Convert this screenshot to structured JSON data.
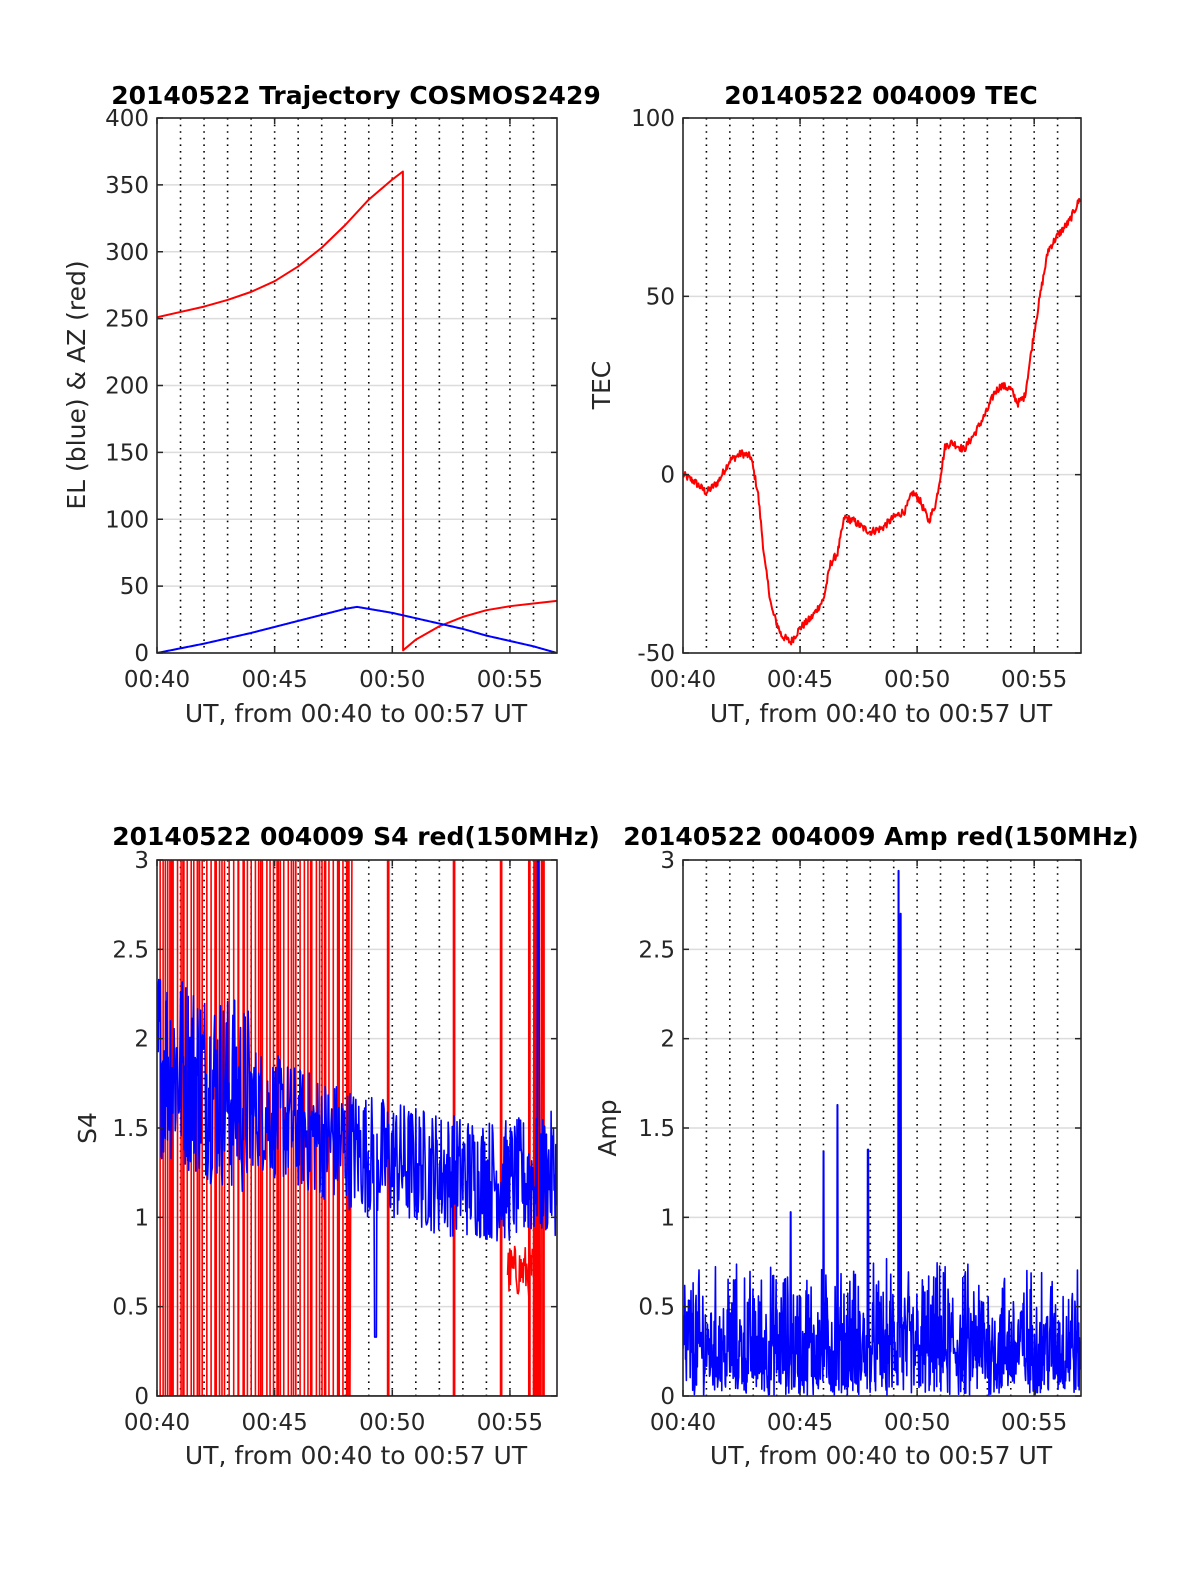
{
  "colors": {
    "red": "#ff0000",
    "blue": "#0000ff",
    "axis": "#262626",
    "grid": "#dcdcdc",
    "dotted": "#000000"
  },
  "chart_data": [
    {
      "type": "line",
      "title": "20140522 Trajectory COSMOS2429",
      "xlabel": "UT, from 00:40 to 00:57 UT",
      "ylabel": "EL (blue) & AZ (red)",
      "xlim": [
        0,
        17
      ],
      "ylim": [
        0,
        400
      ],
      "xticks": [
        0,
        5,
        10,
        15
      ],
      "xticklabels": [
        "00:40",
        "00:45",
        "00:50",
        "00:55"
      ],
      "yticks": [
        0,
        50,
        100,
        150,
        200,
        250,
        300,
        350,
        400
      ],
      "yticklabels": [
        "0",
        "50",
        "100",
        "150",
        "200",
        "250",
        "300",
        "350",
        "400"
      ],
      "grid": true,
      "series": [
        {
          "color": "#ff0000",
          "x": [
            0,
            1,
            2,
            3,
            4,
            5,
            6,
            7,
            8,
            9,
            10,
            10.45,
            10.46,
            11,
            12,
            13,
            14,
            15,
            16,
            17
          ],
          "y": [
            251,
            255,
            259,
            264,
            270,
            278,
            289,
            303,
            320,
            339,
            354,
            360,
            2,
            10,
            20,
            27,
            32,
            35,
            37,
            39
          ]
        },
        {
          "color": "#0000ff",
          "x": [
            0,
            1,
            2,
            3,
            4,
            5,
            6,
            7,
            8,
            8.5,
            9,
            10,
            11,
            12,
            13,
            14,
            15,
            16,
            17
          ],
          "y": [
            0,
            3.5,
            7,
            11,
            15,
            19.5,
            24,
            28.5,
            33,
            34.5,
            33,
            30,
            26,
            22,
            18,
            13,
            9,
            5,
            0
          ]
        }
      ]
    },
    {
      "type": "line",
      "title": "20140522 004009 TEC",
      "xlabel": "UT, from 00:40 to 00:57 UT",
      "ylabel": "TEC",
      "xlim": [
        0,
        17
      ],
      "ylim": [
        -50,
        100
      ],
      "xticks": [
        0,
        5,
        10,
        15
      ],
      "xticklabels": [
        "00:40",
        "00:45",
        "00:50",
        "00:55"
      ],
      "yticks": [
        -50,
        0,
        50,
        100
      ],
      "yticklabels": [
        "-50",
        "0",
        "50",
        "100"
      ],
      "grid": true,
      "series": [
        {
          "color": "#ff0000",
          "x": [
            0,
            0.5,
            1,
            1.5,
            2,
            2.5,
            2.9,
            3.2,
            3.5,
            3.8,
            4.2,
            4.6,
            5,
            5.5,
            6,
            6.3,
            6.6,
            6.9,
            7.3,
            7.7,
            8,
            8.5,
            9,
            9.5,
            9.8,
            10.1,
            10.5,
            10.8,
            11.2,
            11.5,
            12,
            12.5,
            13,
            13.3,
            13.6,
            14,
            14.3,
            14.6,
            15,
            15.3,
            15.6,
            16,
            16.5,
            17
          ],
          "y": [
            0,
            -2,
            -5,
            -2,
            4,
            6,
            5,
            -5,
            -25,
            -38,
            -45,
            -47,
            -43,
            -40,
            -35,
            -25,
            -22,
            -12,
            -13,
            -15,
            -16,
            -15,
            -12,
            -10,
            -5,
            -7,
            -13,
            -8,
            8,
            9,
            7,
            12,
            18,
            23,
            25,
            24,
            20,
            22,
            40,
            52,
            63,
            67,
            71,
            78
          ]
        }
      ]
    },
    {
      "type": "line",
      "title": "20140522 004009 S4 red(150MHz)",
      "xlabel": "UT, from 00:40 to 00:57 UT",
      "ylabel": "S4",
      "xlim": [
        0,
        17
      ],
      "ylim": [
        0,
        3
      ],
      "xticks": [
        0,
        5,
        10,
        15
      ],
      "xticklabels": [
        "00:40",
        "00:45",
        "00:50",
        "00:55"
      ],
      "yticks": [
        0,
        0.5,
        1,
        1.5,
        2,
        2.5,
        3
      ],
      "yticklabels": [
        "0",
        "0.5",
        "1",
        "1.5",
        "2",
        "2.5",
        "3"
      ],
      "grid": true,
      "series": [
        {
          "color": "#ff0000",
          "noisy": true,
          "range": [
            0,
            3
          ],
          "x_end": 8.2,
          "spikes_x": [
            9.8,
            12.6,
            14.6,
            15.8,
            16.1,
            16.4
          ],
          "low_band": [
            14.9,
            16.0,
            0.55,
            0.85
          ]
        },
        {
          "color": "#0000ff",
          "noisy": true,
          "trend_x": [
            0,
            3,
            6,
            9,
            12,
            15,
            17
          ],
          "trend_y": [
            1.9,
            1.7,
            1.5,
            1.35,
            1.25,
            1.2,
            1.25
          ],
          "spread": 0.35,
          "dip_x": 9.3,
          "dip_y": 0.33,
          "spike_x": 16.2,
          "spike_y": 3.0
        }
      ]
    },
    {
      "type": "line",
      "title": "20140522 004009 Amp red(150MHz)",
      "xlabel": "UT, from 00:40 to 00:57 UT",
      "ylabel": "Amp",
      "xlim": [
        0,
        17
      ],
      "ylim": [
        0,
        3
      ],
      "xticks": [
        0,
        5,
        10,
        15
      ],
      "xticklabels": [
        "00:40",
        "00:45",
        "00:50",
        "00:55"
      ],
      "yticks": [
        0,
        0.5,
        1,
        1.5,
        2,
        2.5,
        3
      ],
      "yticklabels": [
        "0",
        "0.5",
        "1",
        "1.5",
        "2",
        "2.5",
        "3"
      ],
      "grid": true,
      "series": [
        {
          "color": "#0000ff",
          "noisy": true,
          "base_max": 0.8,
          "peaks": [
            [
              4.6,
              1.03
            ],
            [
              6.0,
              1.37
            ],
            [
              6.6,
              1.63
            ],
            [
              7.9,
              1.38
            ],
            [
              9.2,
              2.94
            ],
            [
              9.3,
              2.7
            ]
          ]
        }
      ]
    }
  ]
}
